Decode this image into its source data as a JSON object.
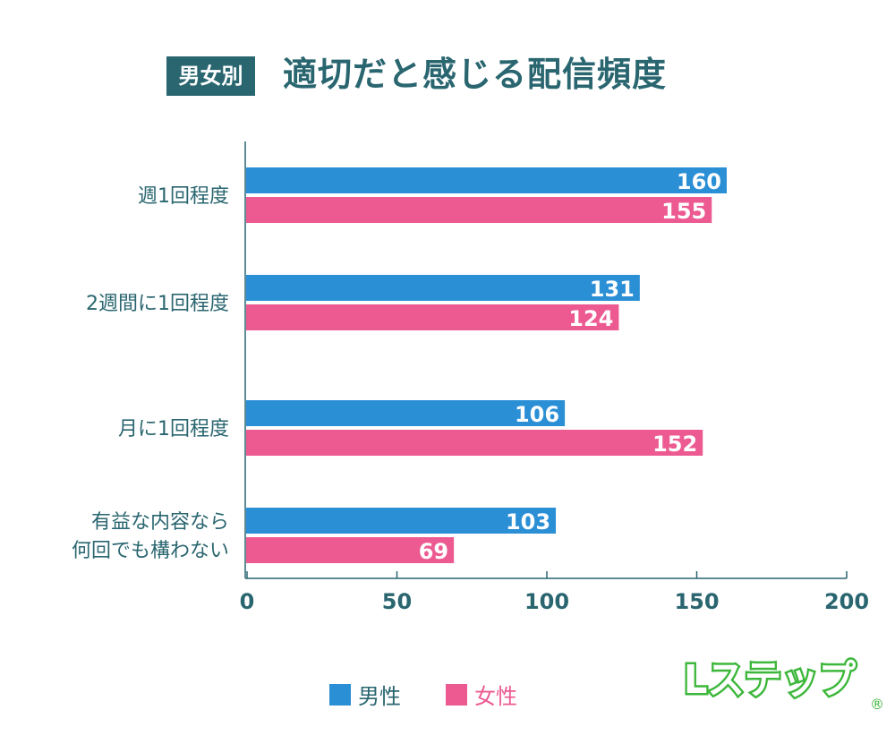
{
  "header": {
    "badge": "男女別",
    "title": "適切だと感じる配信頻度"
  },
  "colors": {
    "male": "#2b8fd6",
    "female": "#ec5a91",
    "text": "#2a6670",
    "logo": "#3cb73a"
  },
  "logo": {
    "text": "Lステップ"
  },
  "chart_data": {
    "type": "bar",
    "orientation": "horizontal",
    "title": "適切だと感じる配信頻度",
    "categories": [
      [
        "週1回程度"
      ],
      [
        "2週間に1回程度"
      ],
      [
        "月に1回程度"
      ],
      [
        "有益な内容なら",
        "何回でも構わない"
      ]
    ],
    "series": [
      {
        "name": "男性",
        "values": [
          160,
          131,
          106,
          103
        ]
      },
      {
        "name": "女性",
        "values": [
          155,
          124,
          152,
          69
        ]
      }
    ],
    "xlim": [
      0,
      200
    ],
    "xticks": [
      0,
      50,
      100,
      150,
      200
    ],
    "grid": false,
    "legend": "bottom-center"
  }
}
